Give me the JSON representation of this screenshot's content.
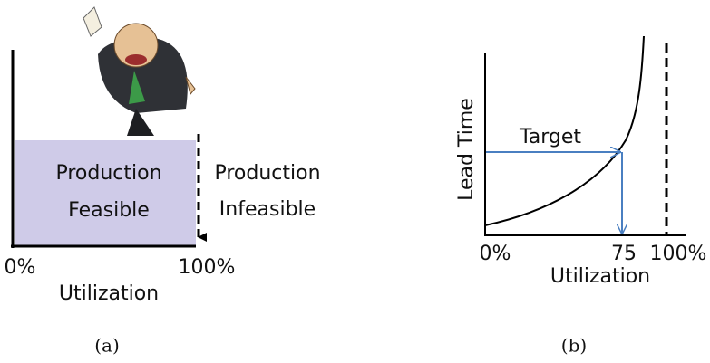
{
  "panel_a": {
    "feasible": [
      "Production",
      "Feasible"
    ],
    "infeasible": [
      "Production",
      "Infeasible"
    ],
    "x_start": "0%",
    "x_end": "100%",
    "x_label": "Utilization",
    "caption": "(a)"
  },
  "panel_b": {
    "y_label": "Lead Time",
    "target": "Target",
    "x_start": "0%",
    "x_target": "75",
    "x_end": "100%",
    "x_label": "Utilization",
    "caption": "(b)"
  }
}
